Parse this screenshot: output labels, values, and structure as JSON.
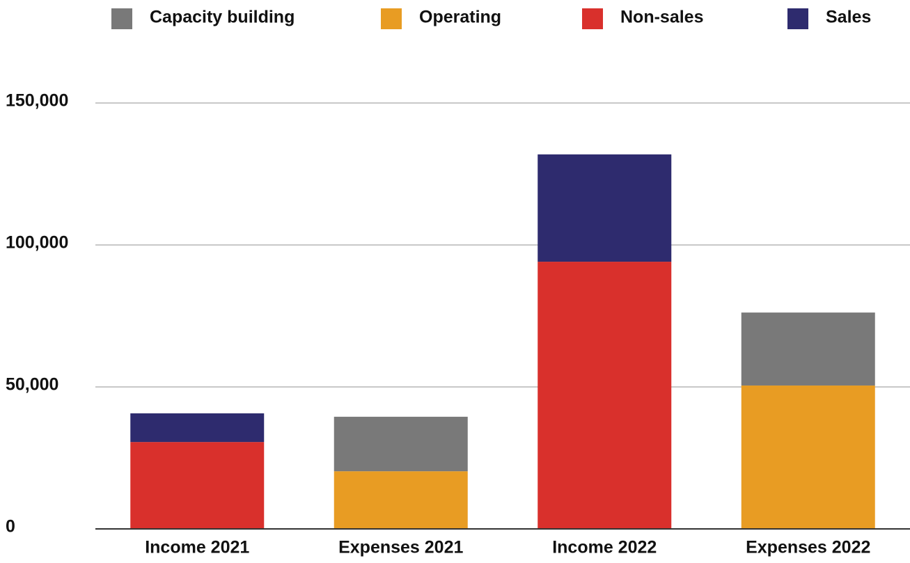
{
  "chart_data": {
    "type": "bar",
    "stacked": true,
    "categories": [
      "Income 2021",
      "Expenses 2021",
      "Income 2022",
      "Expenses 2022"
    ],
    "series": [
      {
        "name": "Capacity building",
        "color": "#797979",
        "values": [
          null,
          19200,
          null,
          25700
        ]
      },
      {
        "name": "Operating",
        "color": "#e89c23",
        "values": [
          null,
          20300,
          null,
          50500
        ]
      },
      {
        "name": "Non-sales",
        "color": "#d9302c",
        "values": [
          30600,
          null,
          94100,
          null
        ]
      },
      {
        "name": "Sales",
        "color": "#2e2b6e",
        "values": [
          10100,
          null,
          37800,
          null
        ]
      }
    ],
    "ylim": [
      0,
      150000
    ],
    "yticks": [
      0,
      {
        "value": 50000,
        "label": "50,000"
      },
      {
        "value": 100000,
        "label": "100,000"
      },
      {
        "value": 150000,
        "label": "150,000"
      }
    ],
    "grid": true,
    "legend": "top"
  }
}
